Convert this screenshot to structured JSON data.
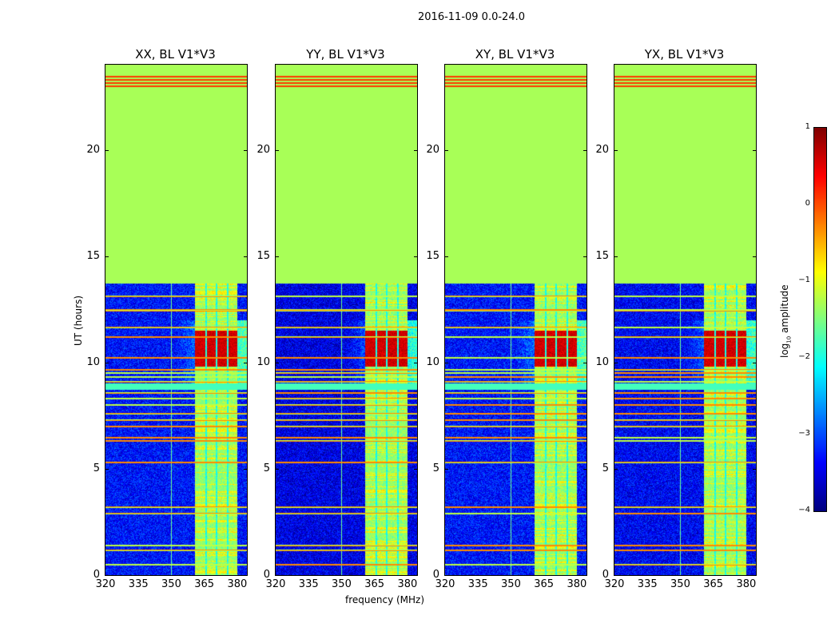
{
  "chart_data": {
    "type": "heatmap",
    "title": "2016-11-09 0.0-24.0",
    "xlabel": "frequency (MHz)",
    "ylabel": "UT (hours)",
    "xlim": [
      320,
      384.4
    ],
    "ylim": [
      0,
      24
    ],
    "xticks": [
      "320",
      "335",
      "350",
      "365",
      "380"
    ],
    "xtick_values": [
      320,
      335,
      350,
      365,
      380
    ],
    "yticks": [
      "0",
      "5",
      "10",
      "15",
      "20"
    ],
    "ytick_values": [
      0,
      5,
      10,
      15,
      20
    ],
    "panels": [
      {
        "title": "XX, BL V1*V3",
        "background": -3.3
      },
      {
        "title": "YY, BL V1*V3",
        "background": -3.5
      },
      {
        "title": "XY, BL V1*V3",
        "background": -3.3
      },
      {
        "title": "YX, BL V1*V3",
        "background": -3.4
      }
    ],
    "colormap": "jet",
    "colorbar": {
      "label_main": "log",
      "label_sub": "10",
      "label_rest": " amplitude",
      "range": [
        -4,
        1
      ],
      "ticks": [
        "1",
        "0",
        "−1",
        "−2",
        "−3",
        "−4"
      ],
      "tick_values": [
        1,
        0,
        -1,
        -2,
        -3,
        -4
      ]
    },
    "flagged_hours": [
      13.7,
      24
    ],
    "flagged_value": -1.3,
    "flagged_rfi_lines_hours": [
      23.0,
      23.15,
      23.3,
      23.45
    ],
    "signal_bands_mhz": [
      [
        360.7,
        365.5
      ],
      [
        366.2,
        370.2
      ],
      [
        370.9,
        375.3
      ],
      [
        376,
        380
      ]
    ],
    "signal_band_value": -1.4,
    "strong_rfi_hours": [
      9.8,
      11.5
    ],
    "strong_rfi_value": 0.6,
    "rfi_line_hours": [
      0.5,
      1.15,
      1.4,
      2.9,
      3.2,
      5.3,
      6.3,
      6.45,
      7.0,
      7.3,
      7.6,
      8.0,
      8.3,
      8.55,
      9.1,
      9.3,
      9.5,
      9.65,
      10.2,
      11.2,
      11.65,
      12.45,
      13.1
    ],
    "flagged_band_hours": [
      8.7,
      9.0
    ],
    "vertical_rfi_mhz": 350
  }
}
